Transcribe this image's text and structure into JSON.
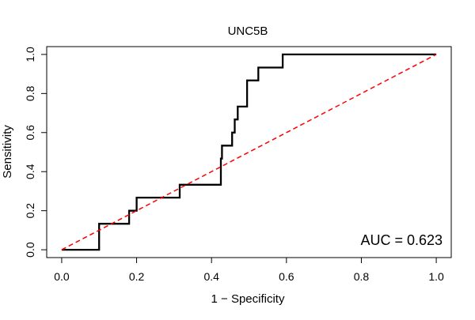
{
  "chart_data": {
    "type": "line",
    "title": "UNC5B",
    "xlabel": "1 − Specificity",
    "ylabel": "Sensitivity",
    "xlim": [
      -0.04,
      1.04
    ],
    "ylim": [
      -0.04,
      1.04
    ],
    "x_ticks": [
      "0.0",
      "0.2",
      "0.4",
      "0.6",
      "0.8",
      "1.0"
    ],
    "y_ticks": [
      "0.0",
      "0.2",
      "0.4",
      "0.6",
      "0.8",
      "1.0"
    ],
    "grid": false,
    "legend": "none",
    "annotation": "AUC = 0.623",
    "colors": {
      "roc": "#000000",
      "diagonal": "#ff0000",
      "frame": "#000000"
    },
    "series": [
      {
        "style": "step",
        "x": [
          0.0,
          0.1,
          0.1,
          0.18,
          0.18,
          0.2,
          0.2,
          0.315,
          0.315,
          0.425,
          0.425,
          0.428,
          0.428,
          0.455,
          0.455,
          0.462,
          0.462,
          0.47,
          0.47,
          0.495,
          0.495,
          0.525,
          0.525,
          0.59,
          0.59,
          1.0
        ],
        "y": [
          0.0,
          0.0,
          0.133,
          0.133,
          0.2,
          0.2,
          0.267,
          0.267,
          0.333,
          0.333,
          0.467,
          0.467,
          0.533,
          0.533,
          0.6,
          0.6,
          0.667,
          0.667,
          0.733,
          0.733,
          0.867,
          0.867,
          0.933,
          0.933,
          1.0,
          1.0
        ]
      },
      {
        "style": "dashed",
        "x": [
          0.0,
          1.0
        ],
        "y": [
          0.0,
          1.0
        ]
      }
    ]
  }
}
